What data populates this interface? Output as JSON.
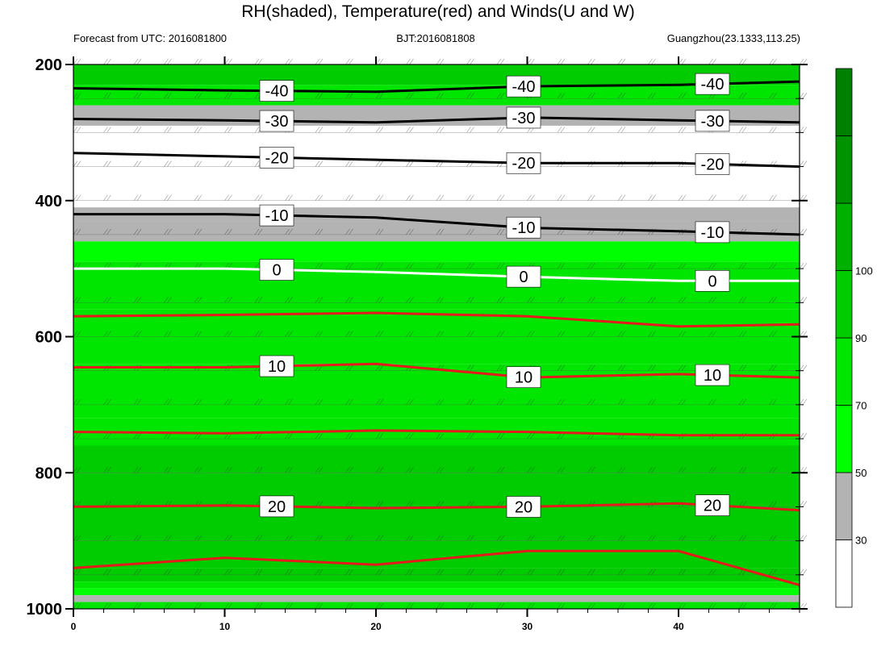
{
  "chart_data": {
    "type": "time-pressure cross section (filled contour + line contours + wind barbs)",
    "title": "RH(shaded), Temperature(red) and Winds(U and W)",
    "left_label": "Forecast from UTC: 2016081800",
    "center_label": "BJT:2016081808",
    "right_label": "Guangzhou(23.1333,113.25)",
    "x": {
      "ticks": [
        0,
        10,
        20,
        30,
        40
      ],
      "range": [
        0,
        48
      ]
    },
    "y": {
      "ticks": [
        200,
        400,
        600,
        800,
        1000
      ],
      "range": [
        1000,
        200
      ],
      "levels": [
        200,
        250,
        300,
        350,
        400,
        450,
        500,
        550,
        600,
        650,
        700,
        750,
        800,
        850,
        900,
        950,
        1000
      ]
    },
    "colorbar": {
      "levels": [
        30,
        50,
        70,
        90,
        100
      ],
      "colors": [
        "#ffffff",
        "#b3b3b3",
        "#00ff00",
        "#00e600",
        "#00cc00",
        "#00b000",
        "#009300",
        "#008000"
      ]
    },
    "shading_profile": [
      {
        "p": 200,
        "rh": 92
      },
      {
        "p": 230,
        "rh": 86
      },
      {
        "p": 260,
        "rh": 40
      },
      {
        "p": 290,
        "rh": 25
      },
      {
        "p": 330,
        "rh": 25
      },
      {
        "p": 370,
        "rh": 25
      },
      {
        "p": 410,
        "rh": 40
      },
      {
        "p": 430,
        "rh": 45
      },
      {
        "p": 460,
        "rh": 60
      },
      {
        "p": 490,
        "rh": 75
      },
      {
        "p": 520,
        "rh": 77
      },
      {
        "p": 560,
        "rh": 78
      },
      {
        "p": 600,
        "rh": 82
      },
      {
        "p": 640,
        "rh": 84
      },
      {
        "p": 680,
        "rh": 86
      },
      {
        "p": 720,
        "rh": 88
      },
      {
        "p": 760,
        "rh": 90
      },
      {
        "p": 800,
        "rh": 92
      },
      {
        "p": 850,
        "rh": 95
      },
      {
        "p": 900,
        "rh": 96
      },
      {
        "p": 940,
        "rh": 97
      },
      {
        "p": 960,
        "rh": 80
      },
      {
        "p": 970,
        "rh": 60
      },
      {
        "p": 980,
        "rh": 40
      },
      {
        "p": 990,
        "rh": 80
      },
      {
        "p": 1000,
        "rh": 80
      }
    ],
    "temperature_contours": [
      {
        "value": -40,
        "color": "#000000",
        "label": "-40",
        "x": [
          0,
          10,
          20,
          30,
          40,
          48
        ],
        "p": [
          235,
          238,
          240,
          232,
          230,
          225
        ]
      },
      {
        "value": -30,
        "color": "#000000",
        "label": "-30",
        "x": [
          0,
          10,
          20,
          30,
          40,
          48
        ],
        "p": [
          280,
          282,
          285,
          278,
          282,
          285
        ]
      },
      {
        "value": -20,
        "color": "#000000",
        "label": "-20",
        "x": [
          0,
          10,
          20,
          30,
          40,
          48
        ],
        "p": [
          330,
          335,
          340,
          345,
          345,
          350
        ]
      },
      {
        "value": -10,
        "color": "#000000",
        "label": "-10",
        "x": [
          0,
          10,
          20,
          30,
          40,
          48
        ],
        "p": [
          420,
          420,
          425,
          440,
          445,
          450
        ]
      },
      {
        "value": 0,
        "color": "#ffffff",
        "label": "0",
        "x": [
          0,
          10,
          20,
          30,
          40,
          48
        ],
        "p": [
          500,
          500,
          505,
          512,
          518,
          518
        ]
      },
      {
        "value": 5,
        "color": "#e41a1c",
        "label": "",
        "x": [
          0,
          10,
          20,
          30,
          40,
          48
        ],
        "p": [
          570,
          568,
          565,
          570,
          585,
          582
        ]
      },
      {
        "value": 10,
        "color": "#e41a1c",
        "label": "10",
        "x": [
          0,
          10,
          20,
          30,
          40,
          48
        ],
        "p": [
          645,
          645,
          640,
          660,
          655,
          660
        ]
      },
      {
        "value": 15,
        "color": "#e41a1c",
        "label": "",
        "x": [
          0,
          10,
          20,
          30,
          40,
          48
        ],
        "p": [
          740,
          742,
          738,
          740,
          745,
          745
        ]
      },
      {
        "value": 20,
        "color": "#e41a1c",
        "label": "20",
        "x": [
          0,
          10,
          20,
          30,
          40,
          48
        ],
        "p": [
          850,
          848,
          852,
          850,
          845,
          855
        ]
      },
      {
        "value": 25,
        "color": "#e41a1c",
        "label": "",
        "x": [
          0,
          10,
          20,
          30,
          40,
          48
        ],
        "p": [
          940,
          925,
          935,
          915,
          915,
          965
        ]
      }
    ]
  }
}
